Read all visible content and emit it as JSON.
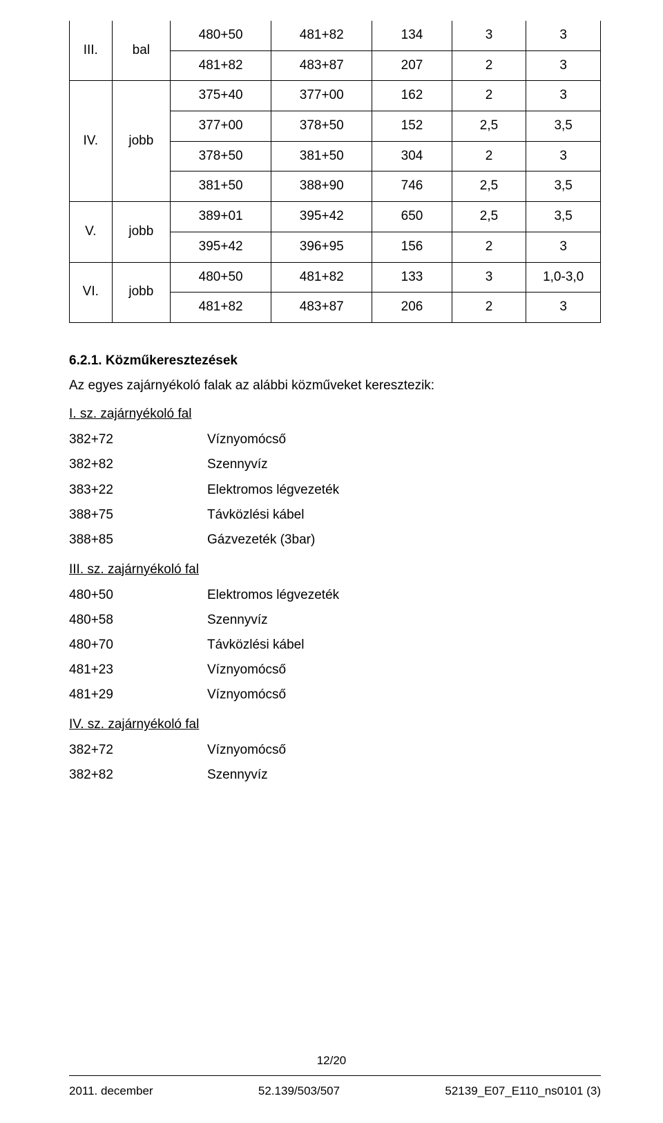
{
  "table": {
    "groups": [
      {
        "label_a": "III.",
        "label_b": "bal",
        "rows": [
          [
            "480+50",
            "481+82",
            "134",
            "3",
            "3"
          ],
          [
            "481+82",
            "483+87",
            "207",
            "2",
            "3"
          ]
        ]
      },
      {
        "label_a": "IV.",
        "label_b": "jobb",
        "rows": [
          [
            "375+40",
            "377+00",
            "162",
            "2",
            "3"
          ],
          [
            "377+00",
            "378+50",
            "152",
            "2,5",
            "3,5"
          ],
          [
            "378+50",
            "381+50",
            "304",
            "2",
            "3"
          ],
          [
            "381+50",
            "388+90",
            "746",
            "2,5",
            "3,5"
          ]
        ]
      },
      {
        "label_a": "V.",
        "label_b": "jobb",
        "rows": [
          [
            "389+01",
            "395+42",
            "650",
            "2,5",
            "3,5"
          ],
          [
            "395+42",
            "396+95",
            "156",
            "2",
            "3"
          ]
        ]
      },
      {
        "label_a": "VI.",
        "label_b": "jobb",
        "rows": [
          [
            "480+50",
            "481+82",
            "133",
            "3",
            "1,0-3,0"
          ],
          [
            "481+82",
            "483+87",
            "206",
            "2",
            "3"
          ]
        ]
      }
    ]
  },
  "section": {
    "heading": "6.2.1.  Közműkeresztezések",
    "intro": "Az egyes zajárnyékoló falak az alábbi közműveket keresztezik:",
    "groups": [
      {
        "title": "I. sz. zajárnyékoló fal",
        "items": [
          [
            "382+72",
            "Víznyomócső"
          ],
          [
            "382+82",
            "Szennyvíz"
          ],
          [
            "383+22",
            "Elektromos légvezeték"
          ],
          [
            "388+75",
            "Távközlési kábel"
          ],
          [
            "388+85",
            "Gázvezeték (3bar)"
          ]
        ]
      },
      {
        "title": "III. sz. zajárnyékoló fal",
        "items": [
          [
            "480+50",
            "Elektromos légvezeték"
          ],
          [
            "480+58",
            "Szennyvíz"
          ],
          [
            "480+70",
            "Távközlési kábel"
          ],
          [
            "481+23",
            "Víznyomócső"
          ],
          [
            "481+29",
            "Víznyomócső"
          ]
        ]
      },
      {
        "title": "IV. sz. zajárnyékoló fal",
        "items": [
          [
            "382+72",
            "Víznyomócső"
          ],
          [
            "382+82",
            "Szennyvíz"
          ]
        ]
      }
    ]
  },
  "footer": {
    "page": "12/20",
    "left": "2011. december",
    "center": "52.139/503/507",
    "right": "52139_E07_E110_ns0101 (3)"
  }
}
